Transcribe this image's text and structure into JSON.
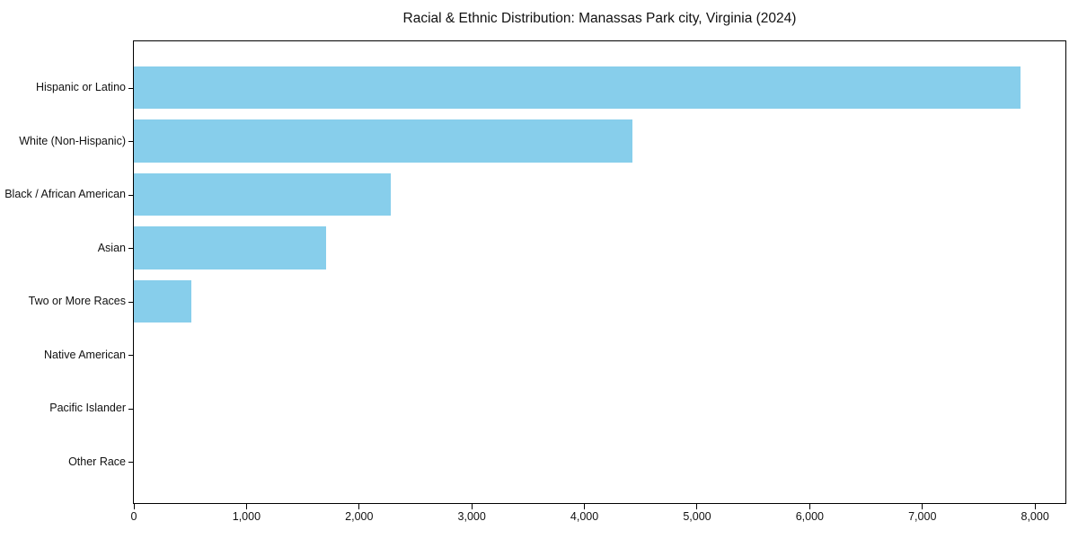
{
  "chart_data": {
    "type": "bar",
    "orientation": "horizontal",
    "title": "Racial & Ethnic Distribution: Manassas Park city, Virginia (2024)",
    "categories": [
      "Hispanic or Latino",
      "White (Non-Hispanic)",
      "Black / African American",
      "Asian",
      "Two or More Races",
      "Native American",
      "Pacific Islander",
      "Other Race"
    ],
    "values": [
      7870,
      4430,
      2280,
      1710,
      510,
      0,
      0,
      0
    ],
    "bar_color": "#87CEEB",
    "xlabel": "",
    "ylabel": "",
    "xlim": [
      0,
      8270
    ],
    "x_ticks": [
      0,
      1000,
      2000,
      3000,
      4000,
      5000,
      6000,
      7000,
      8000
    ],
    "x_tick_labels": [
      "0",
      "1,000",
      "2,000",
      "3,000",
      "4,000",
      "5,000",
      "6,000",
      "7,000",
      "8,000"
    ],
    "grid": false,
    "legend": null,
    "background_color": "#ffffff",
    "spine_color": "#000000"
  }
}
